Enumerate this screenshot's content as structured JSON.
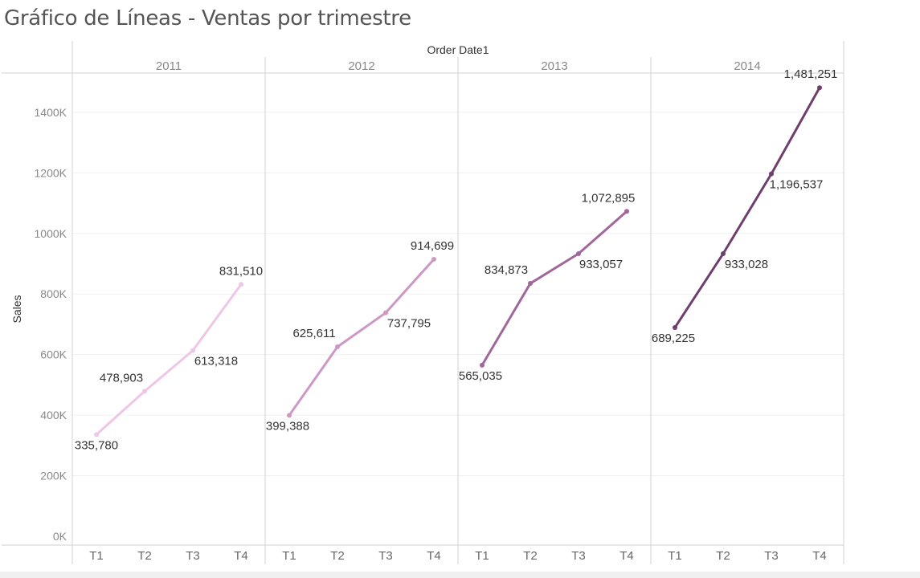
{
  "title": "Gráfico de Líneas - Ventas por trimestre",
  "chart_data": {
    "type": "line",
    "header_label": "Order Date1",
    "ylabel": "Sales",
    "ylim": [
      0,
      1500000
    ],
    "yticks": [
      {
        "value": 0,
        "label": "0K"
      },
      {
        "value": 200000,
        "label": "200K"
      },
      {
        "value": 400000,
        "label": "400K"
      },
      {
        "value": 600000,
        "label": "600K"
      },
      {
        "value": 800000,
        "label": "800K"
      },
      {
        "value": 1000000,
        "label": "1000K"
      },
      {
        "value": 1200000,
        "label": "1200K"
      },
      {
        "value": 1400000,
        "label": "1400K"
      }
    ],
    "quarters": [
      "T1",
      "T2",
      "T3",
      "T4"
    ],
    "panels": [
      {
        "year": "2011",
        "color": "#eec6e6",
        "values": [
          335780,
          478903,
          613318,
          831510
        ],
        "labels": [
          "335,780",
          "478,903",
          "613,318",
          "831,510"
        ]
      },
      {
        "year": "2012",
        "color": "#cd99c4",
        "values": [
          399388,
          625611,
          737795,
          914699
        ],
        "labels": [
          "399,388",
          "625,611",
          "737,795",
          "914,699"
        ]
      },
      {
        "year": "2013",
        "color": "#a0679a",
        "values": [
          565035,
          834873,
          933057,
          1072895
        ],
        "labels": [
          "565,035",
          "834,873",
          "933,057",
          "1,072,895"
        ]
      },
      {
        "year": "2014",
        "color": "#6e3f6c",
        "values": [
          689225,
          933028,
          1196537,
          1481251
        ],
        "labels": [
          "689,225",
          "933,028",
          "1,196,537",
          "1,481,251"
        ]
      }
    ]
  }
}
